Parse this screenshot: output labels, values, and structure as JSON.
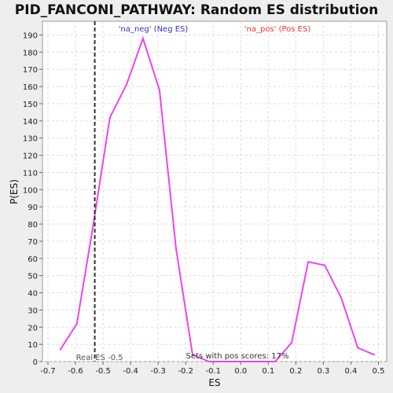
{
  "chart_data": {
    "type": "line",
    "title": "PID_FANCONI_PATHWAY: Random ES distribution",
    "xlabel": "ES",
    "ylabel": "P(ES)",
    "xlim": [
      -0.72,
      0.53
    ],
    "ylim": [
      0,
      198
    ],
    "xticks": [
      -0.7,
      -0.6,
      -0.5,
      -0.4,
      -0.3,
      -0.2,
      -0.1,
      0.0,
      0.1,
      0.2,
      0.3,
      0.4,
      0.5
    ],
    "xtick_labels": [
      "-0.7",
      "-0.6",
      "-0.5",
      "-0.4",
      "-0.3",
      "-0.2",
      "-0.1",
      "0.0",
      "0.1",
      "0.2",
      "0.3",
      "0.4",
      "0.5"
    ],
    "yticks": [
      0,
      10,
      20,
      30,
      40,
      50,
      60,
      70,
      80,
      90,
      100,
      110,
      120,
      130,
      140,
      150,
      160,
      170,
      180,
      190
    ],
    "grid": true,
    "series": [
      {
        "color": "#ee44ee",
        "x": [
          -0.655,
          -0.595,
          -0.535,
          -0.475,
          -0.415,
          -0.355,
          -0.295,
          -0.235,
          -0.175,
          -0.115,
          -0.055,
          0.005,
          0.065,
          0.125,
          0.185,
          0.245,
          0.305,
          0.365,
          0.425,
          0.485
        ],
        "y": [
          7,
          22,
          80,
          142,
          161,
          188,
          158,
          66,
          4,
          0,
          0,
          0,
          0,
          0,
          11,
          58,
          56,
          37,
          8,
          4
        ]
      }
    ],
    "annotations": {
      "neg_label": "'na_neg' (Neg ES)",
      "pos_label": "'na_pos' (Pos ES)",
      "neg_color": "#3333cc",
      "pos_color": "#ee3333",
      "real_es_label": "Real ES -0.5",
      "real_es_value": -0.53,
      "pos_scores_label": "Sets with pos scores: 17%"
    }
  }
}
